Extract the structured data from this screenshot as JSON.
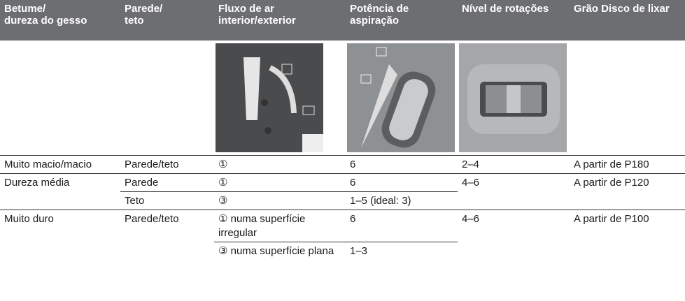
{
  "table": {
    "header": [
      "Betume/\ndureza do gesso",
      "Parede/\nteto",
      "Fluxo de ar\ninterior/exterior",
      "Potência de\naspiração",
      "Nível de rotações",
      "Grão Disco de lixar"
    ],
    "rows": [
      [
        "Muito macio/macio",
        "Parede/teto",
        "①",
        "6",
        "2–4",
        "A partir de P180"
      ],
      [
        "Dureza média",
        "Parede",
        "①",
        "6",
        "4–6",
        "A partir de P120"
      ],
      [
        "Teto",
        "③",
        "1–5 (ideal: 3)"
      ],
      [
        "Muito duro",
        "Parede/teto",
        "① numa superfície irregular",
        "6",
        "4–6",
        "A partir de P100"
      ],
      [
        "③ numa superfície plana",
        "1–3"
      ]
    ]
  }
}
